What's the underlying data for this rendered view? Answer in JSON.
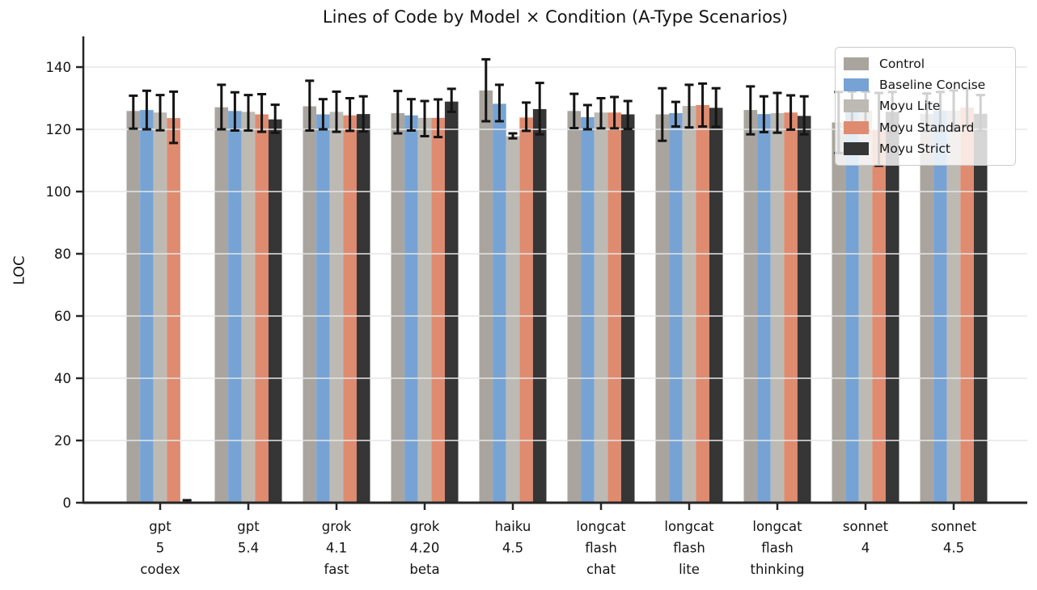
{
  "chart_data": {
    "type": "bar",
    "title": "Lines of Code by Model × Condition (A-Type Scenarios)",
    "ylabel": "LOC",
    "xlabel": "",
    "ylim": [
      0,
      150
    ],
    "yticks": [
      0,
      20,
      40,
      60,
      80,
      100,
      120,
      140
    ],
    "grid": true,
    "legend_position": "upper right",
    "categories": [
      "gpt 5 codex",
      "gpt 5.4",
      "grok 4.1 fast",
      "grok 4.20 beta",
      "haiku 4.5",
      "longcat flash chat",
      "longcat flash lite",
      "longcat flash thinking",
      "sonnet 4",
      "sonnet 4.5"
    ],
    "category_lines": [
      [
        "gpt",
        "5",
        "codex"
      ],
      [
        "gpt",
        "5.4"
      ],
      [
        "grok",
        "4.1",
        "fast"
      ],
      [
        "grok",
        "4.20",
        "beta"
      ],
      [
        "haiku",
        "4.5"
      ],
      [
        "longcat",
        "flash",
        "chat"
      ],
      [
        "longcat",
        "flash",
        "lite"
      ],
      [
        "longcat",
        "flash",
        "thinking"
      ],
      [
        "sonnet",
        "4"
      ],
      [
        "sonnet",
        "4.5"
      ]
    ],
    "series": [
      {
        "name": "Control",
        "color": "#A9A59E",
        "values": [
          125.9,
          127.1,
          127.4,
          125.2,
          132.5,
          125.9,
          124.8,
          126.2,
          122.2,
          125.0
        ],
        "err_low": [
          120.2,
          120.0,
          119.6,
          118.7,
          122.6,
          120.4,
          116.3,
          118.4,
          112.4,
          119.5
        ],
        "err_high": [
          130.8,
          134.3,
          135.6,
          132.3,
          142.5,
          131.4,
          133.2,
          133.8,
          132.0,
          131.5
        ]
      },
      {
        "name": "Baseline Concise",
        "color": "#76A3D3",
        "values": [
          126.2,
          125.9,
          124.8,
          124.5,
          128.2,
          123.9,
          125.2,
          124.9,
          125.9,
          126.0
        ],
        "err_low": [
          120.0,
          119.6,
          120.0,
          119.6,
          122.6,
          120.0,
          120.9,
          119.1,
          119.6,
          119.5
        ],
        "err_high": [
          132.4,
          131.9,
          129.7,
          129.7,
          134.3,
          127.8,
          128.8,
          130.6,
          132.1,
          132.0
        ]
      },
      {
        "name": "Moyu Lite",
        "color": "#BDBAB3",
        "values": [
          125.4,
          125.6,
          125.6,
          123.7,
          117.8,
          125.4,
          127.5,
          125.2,
          126.0,
          126.0
        ],
        "err_low": [
          119.7,
          119.6,
          119.2,
          117.8,
          117.1,
          120.3,
          120.6,
          118.9,
          119.6,
          119.5
        ],
        "err_high": [
          131.0,
          131.0,
          132.1,
          129.1,
          118.7,
          130.0,
          134.3,
          131.7,
          132.1,
          132.5
        ]
      },
      {
        "name": "Moyu Standard",
        "color": "#DF8B70",
        "values": [
          123.6,
          124.8,
          124.5,
          123.7,
          123.8,
          125.4,
          127.8,
          125.4,
          120.0,
          127.0
        ],
        "err_low": [
          115.6,
          119.2,
          119.5,
          117.5,
          119.5,
          120.3,
          120.9,
          119.9,
          108.3,
          121.0
        ],
        "err_high": [
          132.1,
          131.3,
          130.0,
          129.6,
          128.6,
          130.4,
          134.7,
          130.9,
          131.7,
          133.0
        ]
      },
      {
        "name": "Moyu Strict",
        "color": "#363636",
        "values": [
          0.4,
          123.2,
          124.9,
          128.9,
          126.5,
          124.8,
          126.9,
          124.3,
          125.6,
          125.0
        ],
        "err_low": [
          0.0,
          118.9,
          119.3,
          125.6,
          118.4,
          120.1,
          120.8,
          118.4,
          119.0,
          119.5
        ],
        "err_high": [
          0.8,
          127.9,
          130.6,
          133.0,
          134.9,
          129.1,
          133.2,
          130.6,
          132.0,
          131.0
        ]
      }
    ],
    "colors": {
      "error_bar": "#141414",
      "axis": "#262626",
      "grid": "#e5e5e5",
      "text": "#141414",
      "background": "#ffffff"
    }
  }
}
